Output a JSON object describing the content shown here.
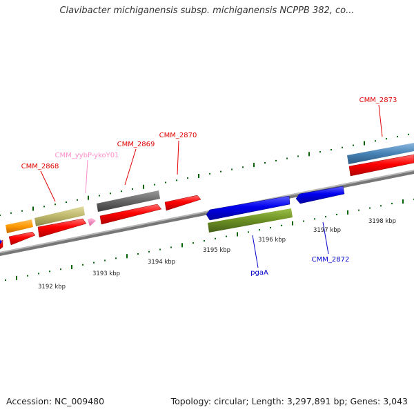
{
  "title": "Clavibacter michiganensis subsp. michiganensis NCPPB 382, co...",
  "footer": {
    "accession": "Accession: NC_009480",
    "summary": "Topology: circular; Length: 3,297,891 bp; Genes: 3,043"
  },
  "scale": {
    "unit": "kbp",
    "labels": [
      "3192 kbp",
      "3193 kbp",
      "3194 kbp",
      "3195 kbp",
      "3196 kbp",
      "3197 kbp",
      "3198 kbp"
    ]
  },
  "gene_labels": [
    {
      "text": "CMM_2868",
      "color": "#e00000",
      "strand": "forward"
    },
    {
      "text": "CMM_yybP-ykoY01",
      "color": "#ff8cc8",
      "strand": "forward"
    },
    {
      "text": "CMM_2869",
      "color": "#e00000",
      "strand": "forward"
    },
    {
      "text": "CMM_2870",
      "color": "#e00000",
      "strand": "forward"
    },
    {
      "text": "CMM_2873",
      "color": "#e00000",
      "strand": "forward"
    },
    {
      "text": "pgaA",
      "color": "#0000cc",
      "strand": "reverse"
    },
    {
      "text": "CMM_2872",
      "color": "#0000cc",
      "strand": "reverse"
    }
  ],
  "feature_colors": {
    "cds": "#ff0000",
    "cds_reverse": "#0000ff",
    "orange_feature": "#ff9900",
    "khaki_feature": "#bdb76b",
    "gray_feature": "#666666",
    "pink_feature": "#ff80c0",
    "olive_feature": "#6b8e23",
    "steelblue_feature": "#4682b4",
    "backbone": "#888888",
    "ticks": "#006400"
  }
}
